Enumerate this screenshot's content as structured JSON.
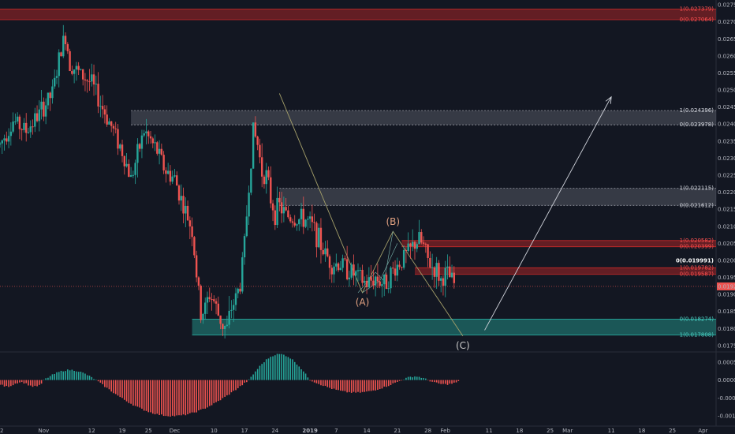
{
  "chart_data": {
    "type": "candlestick",
    "price_axis": {
      "range": [
        0.01745,
        0.02755
      ],
      "ticks": [
        "0.027500",
        "0.027000",
        "0.026500",
        "0.026000",
        "0.025500",
        "0.025000",
        "0.024500",
        "0.024000",
        "0.023500",
        "0.023000",
        "0.022500",
        "0.022000",
        "0.021500",
        "0.021000",
        "0.020500",
        "0.020000",
        "0.019500",
        "0.019000",
        "0.018500",
        "0.018000",
        "0.017500"
      ],
      "current_price_label": "0.019235"
    },
    "time_axis": {
      "labels": [
        {
          "text": "22",
          "day": 0
        },
        {
          "text": "Nov",
          "day": 10
        },
        {
          "text": "12",
          "day": 21
        },
        {
          "text": "19",
          "day": 28
        },
        {
          "text": "25",
          "day": 34
        },
        {
          "text": "Dec",
          "day": 40
        },
        {
          "text": "10",
          "day": 49
        },
        {
          "text": "17",
          "day": 56
        },
        {
          "text": "24",
          "day": 63
        },
        {
          "text": "2019",
          "day": 71
        },
        {
          "text": "7",
          "day": 77
        },
        {
          "text": "14",
          "day": 84
        },
        {
          "text": "21",
          "day": 91
        },
        {
          "text": "28",
          "day": 98
        },
        {
          "text": "Feb",
          "day": 102
        },
        {
          "text": "11",
          "day": 112
        },
        {
          "text": "18",
          "day": 119
        },
        {
          "text": "25",
          "day": 126
        },
        {
          "text": "Mar",
          "day": 130
        },
        {
          "text": "11",
          "day": 140
        },
        {
          "text": "18",
          "day": 147
        },
        {
          "text": "25",
          "day": 154
        },
        {
          "text": "Apr",
          "day": 161
        }
      ]
    },
    "series": [
      {
        "kind": "close_path",
        "x": [
          0,
          3,
          6,
          9,
          12,
          14,
          15,
          16,
          18,
          21,
          23,
          26,
          28,
          30,
          33,
          36,
          38,
          40,
          42,
          44,
          45,
          46,
          47,
          48,
          49,
          50,
          51,
          52,
          53,
          54,
          55,
          56,
          57,
          58,
          59,
          60,
          61,
          62,
          63,
          64,
          65,
          66,
          68,
          70,
          72,
          74,
          76,
          78,
          80,
          82,
          84,
          86,
          88,
          90,
          92,
          94,
          95,
          96,
          97,
          98,
          99,
          100,
          101,
          102,
          103,
          104
        ],
        "y": [
          0.0234,
          0.0241,
          0.0238,
          0.0243,
          0.0249,
          0.0262,
          0.0266,
          0.0258,
          0.0255,
          0.0252,
          0.0246,
          0.0238,
          0.0232,
          0.0224,
          0.0238,
          0.0232,
          0.0226,
          0.0224,
          0.0216,
          0.0209,
          0.0196,
          0.0184,
          0.0186,
          0.019,
          0.0188,
          0.0184,
          0.0181,
          0.018,
          0.0186,
          0.0189,
          0.0193,
          0.0205,
          0.0222,
          0.0238,
          0.0234,
          0.0226,
          0.0225,
          0.0218,
          0.0214,
          0.0216,
          0.0214,
          0.0213,
          0.0212,
          0.0212,
          0.0209,
          0.0203,
          0.0199,
          0.0199,
          0.0197,
          0.0195,
          0.0193,
          0.0195,
          0.0193,
          0.0197,
          0.02,
          0.0203,
          0.0205,
          0.0206,
          0.0204,
          0.02,
          0.0198,
          0.0197,
          0.0194,
          0.0196,
          0.0195,
          0.0193
        ]
      }
    ],
    "zones": [
      {
        "name": "top-red",
        "color": "#c62828",
        "top": "1(0.027379)",
        "bottom": "0(0.027064)",
        "y1": 0.027379,
        "y0": 0.027064,
        "start_day": 0
      },
      {
        "name": "upper-grey",
        "color": "#9598a1",
        "top": "1(0.024396)",
        "bottom": "0(0.023978)",
        "y1": 0.024396,
        "y0": 0.023978,
        "start_day": 30
      },
      {
        "name": "mid-grey",
        "color": "#9598a1",
        "top": "1(0.022115)",
        "bottom": "0(0.021612)",
        "y1": 0.022115,
        "y0": 0.021612,
        "start_day": 64
      },
      {
        "name": "mid-red",
        "color": "#c62828",
        "top": "1(0.020582)",
        "bottom": "0(0.020399)",
        "y1": 0.020582,
        "y0": 0.020399,
        "start_day": 92
      },
      {
        "name": "low-red",
        "color": "#c62828",
        "top": "1(0.019782)",
        "bottom": "0(0.019587)",
        "y1": 0.019782,
        "y0": 0.019587,
        "start_day": 95
      },
      {
        "name": "support-teal",
        "color": "#26a69a",
        "top": "0(0.018274)",
        "bottom": "1(0.017808)",
        "y1": 0.018274,
        "y0": 0.017808,
        "start_day": 44
      }
    ],
    "level_label": "0(0.019991)",
    "level_value": 0.019991,
    "waves": [
      {
        "label": "(A)",
        "day": 83,
        "price": 0.01905
      },
      {
        "label": "(B)",
        "day": 90,
        "price": 0.02085
      },
      {
        "label": "(C)",
        "day": 106,
        "price": 0.01778
      }
    ],
    "projection": {
      "from_day": 111,
      "from_price": 0.01795,
      "to_day": 140,
      "to_price": 0.0248
    },
    "oscillator": {
      "ticks": [
        "0.0005",
        "0.0000",
        "-0.0005",
        "-0.0010"
      ],
      "range": [
        -0.00115,
        0.00065
      ],
      "positive_color": "#26a69a",
      "negative_color": "#ef5350"
    }
  }
}
